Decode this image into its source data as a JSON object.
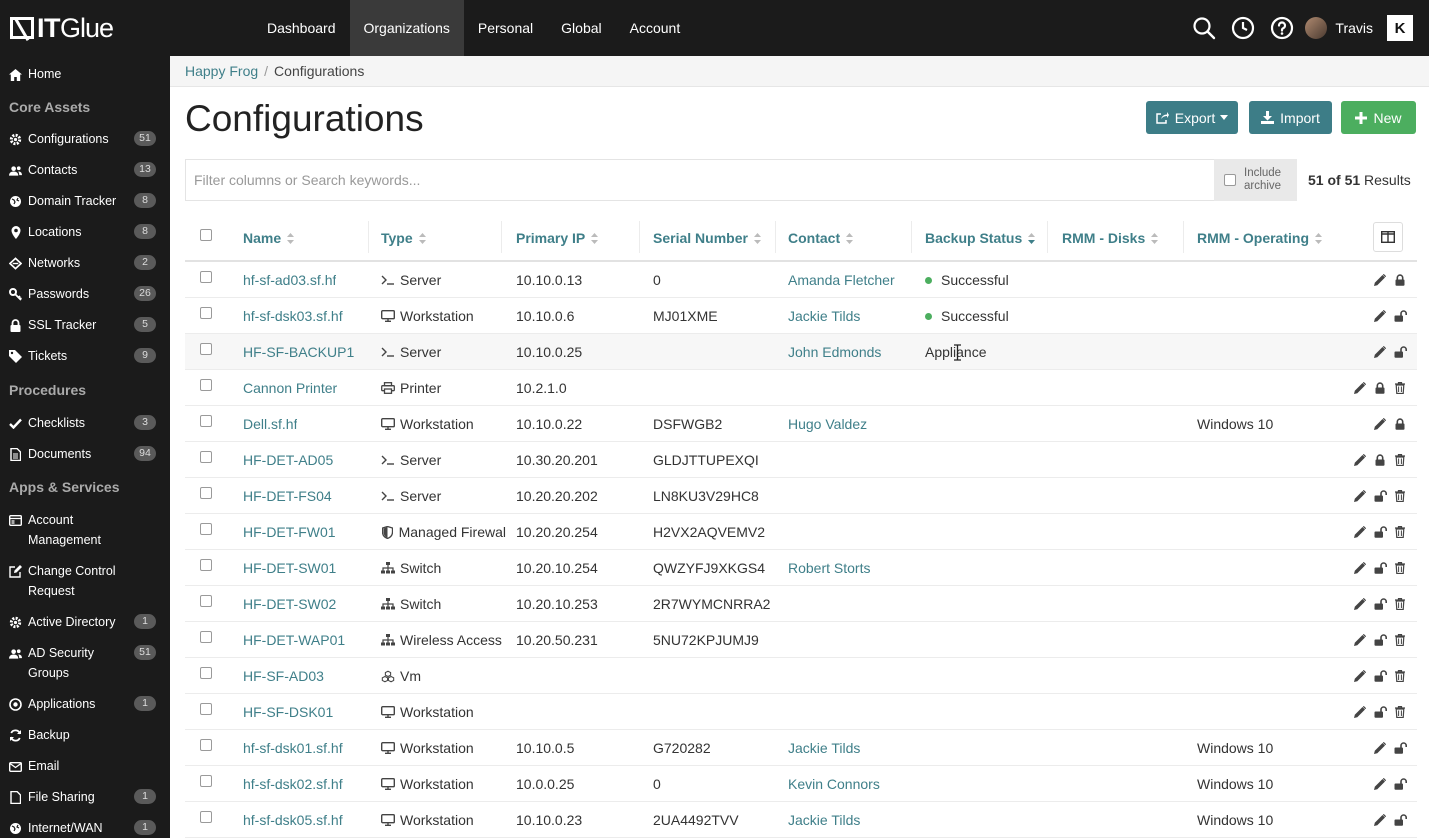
{
  "logo": {
    "brand": "IT",
    "suffix": "Glue"
  },
  "nav": [
    {
      "label": "Dashboard",
      "active": false
    },
    {
      "label": "Organizations",
      "active": true
    },
    {
      "label": "Personal",
      "active": false
    },
    {
      "label": "Global",
      "active": false
    },
    {
      "label": "Account",
      "active": false
    }
  ],
  "user": {
    "name": "Travis",
    "kaseya_mark": "K"
  },
  "sidebar": {
    "home": "Home",
    "core_assets": {
      "title": "Core Assets",
      "items": [
        {
          "label": "Configurations",
          "count": "51",
          "icon": "gear-icon"
        },
        {
          "label": "Contacts",
          "count": "13",
          "icon": "users-icon"
        },
        {
          "label": "Domain Tracker",
          "count": "8",
          "icon": "globe-icon"
        },
        {
          "label": "Locations",
          "count": "8",
          "icon": "map-pin-icon"
        },
        {
          "label": "Networks",
          "count": "2",
          "icon": "network-icon"
        },
        {
          "label": "Passwords",
          "count": "26",
          "icon": "key-icon"
        },
        {
          "label": "SSL Tracker",
          "count": "5",
          "icon": "lock-icon"
        },
        {
          "label": "Tickets",
          "count": "9",
          "icon": "tag-icon"
        }
      ]
    },
    "procedures": {
      "title": "Procedures",
      "items": [
        {
          "label": "Checklists",
          "count": "3",
          "icon": "check-icon"
        },
        {
          "label": "Documents",
          "count": "94",
          "icon": "document-icon"
        }
      ]
    },
    "apps": {
      "title": "Apps & Services",
      "items": [
        {
          "label": "Account Management",
          "count": "",
          "icon": "card-icon"
        },
        {
          "label": "Change Control Request",
          "count": "",
          "icon": "edit-icon"
        },
        {
          "label": "Active Directory",
          "count": "1",
          "icon": "gear-icon"
        },
        {
          "label": "AD Security Groups",
          "count": "51",
          "icon": "users-icon"
        },
        {
          "label": "Applications",
          "count": "1",
          "icon": "circle-play-icon"
        },
        {
          "label": "Backup",
          "count": "",
          "icon": "refresh-icon"
        },
        {
          "label": "Email",
          "count": "",
          "icon": "envelope-icon"
        },
        {
          "label": "File Sharing",
          "count": "1",
          "icon": "file-icon"
        },
        {
          "label": "Internet/WAN",
          "count": "1",
          "icon": "globe-icon"
        }
      ]
    }
  },
  "breadcrumb": {
    "org": "Happy Frog",
    "separator": "/",
    "current": "Configurations"
  },
  "page": {
    "title": "Configurations",
    "export_label": "Export",
    "import_label": "Import",
    "new_label": "New",
    "search_placeholder": "Filter columns or Search keywords...",
    "include_archive_line1": "Include",
    "include_archive_line2": "archive",
    "results_count": "51 of 51",
    "results_label": "Results"
  },
  "colors": {
    "accent": "#3d7d87",
    "success": "#4cae5f",
    "dark": "#1b1b1b",
    "link": "#3f7f89"
  },
  "table": {
    "columns": [
      "Name",
      "Type",
      "Primary IP",
      "Serial Number",
      "Contact",
      "Backup Status",
      "RMM - Disks",
      "RMM - Operating"
    ],
    "rows": [
      {
        "name": "hf-sf-ad03.sf.hf",
        "type": "Server",
        "type_icon": "terminal-icon",
        "ip": "10.10.0.13",
        "serial": "0",
        "contact": "Amanda Fletcher",
        "backup": "Successful",
        "backup_ok": true,
        "os": "",
        "lock": "locked",
        "trash": false
      },
      {
        "name": "hf-sf-dsk03.sf.hf",
        "type": "Workstation",
        "type_icon": "monitor-icon",
        "ip": "10.10.0.6",
        "serial": "MJ01XME",
        "contact": "Jackie Tilds",
        "backup": "Successful",
        "backup_ok": true,
        "os": "",
        "lock": "unlocked",
        "trash": false
      },
      {
        "name": "HF-SF-BACKUP1",
        "type": "Server",
        "type_icon": "terminal-icon",
        "ip": "10.10.0.25",
        "serial": "",
        "contact": "John Edmonds",
        "backup": "Appliance",
        "backup_ok": false,
        "os": "",
        "lock": "unlocked",
        "trash": false
      },
      {
        "name": "Cannon Printer",
        "type": "Printer",
        "type_icon": "printer-icon",
        "ip": "10.2.1.0",
        "serial": "",
        "contact": "",
        "backup": "",
        "backup_ok": false,
        "os": "",
        "lock": "locked",
        "trash": true
      },
      {
        "name": "Dell.sf.hf",
        "type": "Workstation",
        "type_icon": "monitor-icon",
        "ip": "10.10.0.22",
        "serial": "DSFWGB2",
        "contact": "Hugo Valdez",
        "backup": "",
        "backup_ok": false,
        "os": "Windows 10",
        "lock": "locked",
        "trash": false
      },
      {
        "name": "HF-DET-AD05",
        "type": "Server",
        "type_icon": "terminal-icon",
        "ip": "10.30.20.201",
        "serial": "GLDJTTUPEXQI",
        "contact": "",
        "backup": "",
        "backup_ok": false,
        "os": "",
        "lock": "locked",
        "trash": true
      },
      {
        "name": "HF-DET-FS04",
        "type": "Server",
        "type_icon": "terminal-icon",
        "ip": "10.20.20.202",
        "serial": "LN8KU3V29HC8",
        "contact": "",
        "backup": "",
        "backup_ok": false,
        "os": "",
        "lock": "unlocked",
        "trash": true
      },
      {
        "name": "HF-DET-FW01",
        "type": "Managed Firewal",
        "type_icon": "shield-icon",
        "ip": "10.20.20.254",
        "serial": "H2VX2AQVEMV2",
        "contact": "",
        "backup": "",
        "backup_ok": false,
        "os": "",
        "lock": "unlocked",
        "trash": true
      },
      {
        "name": "HF-DET-SW01",
        "type": "Switch",
        "type_icon": "sitemap-icon",
        "ip": "10.20.10.254",
        "serial": "QWZYFJ9XKGS4",
        "contact": "Robert Storts",
        "backup": "",
        "backup_ok": false,
        "os": "",
        "lock": "unlocked",
        "trash": true
      },
      {
        "name": "HF-DET-SW02",
        "type": "Switch",
        "type_icon": "sitemap-icon",
        "ip": "10.20.10.253",
        "serial": "2R7WYMCNRRA2",
        "contact": "",
        "backup": "",
        "backup_ok": false,
        "os": "",
        "lock": "unlocked",
        "trash": true
      },
      {
        "name": "HF-DET-WAP01",
        "type": "Wireless Access I",
        "type_icon": "sitemap-icon",
        "ip": "10.20.50.231",
        "serial": "5NU72KPJUMJ9",
        "contact": "",
        "backup": "",
        "backup_ok": false,
        "os": "",
        "lock": "unlocked",
        "trash": true
      },
      {
        "name": "HF-SF-AD03",
        "type": "Vm",
        "type_icon": "cubes-icon",
        "ip": "",
        "serial": "",
        "contact": "",
        "backup": "",
        "backup_ok": false,
        "os": "",
        "lock": "unlocked",
        "trash": true
      },
      {
        "name": "HF-SF-DSK01",
        "type": "Workstation",
        "type_icon": "monitor-icon",
        "ip": "",
        "serial": "",
        "contact": "",
        "backup": "",
        "backup_ok": false,
        "os": "",
        "lock": "unlocked",
        "trash": true
      },
      {
        "name": "hf-sf-dsk01.sf.hf",
        "type": "Workstation",
        "type_icon": "monitor-icon",
        "ip": "10.10.0.5",
        "serial": "G720282",
        "contact": "Jackie Tilds",
        "backup": "",
        "backup_ok": false,
        "os": "Windows 10",
        "lock": "unlocked",
        "trash": false
      },
      {
        "name": "hf-sf-dsk02.sf.hf",
        "type": "Workstation",
        "type_icon": "monitor-icon",
        "ip": "10.0.0.25",
        "serial": "0",
        "contact": "Kevin Connors",
        "backup": "",
        "backup_ok": false,
        "os": "Windows 10",
        "lock": "unlocked",
        "trash": false
      },
      {
        "name": "hf-sf-dsk05.sf.hf",
        "type": "Workstation",
        "type_icon": "monitor-icon",
        "ip": "10.10.0.23",
        "serial": "2UA4492TVV",
        "contact": "Jackie Tilds",
        "backup": "",
        "backup_ok": false,
        "os": "Windows 10",
        "lock": "unlocked",
        "trash": false
      }
    ]
  }
}
